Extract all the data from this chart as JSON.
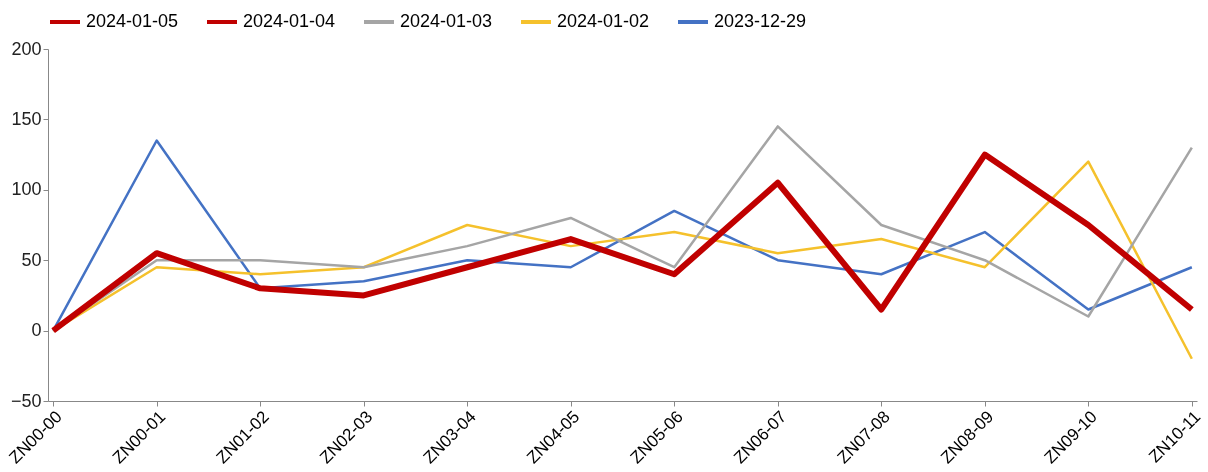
{
  "chart_data": {
    "type": "line",
    "categories": [
      "ZN00-00",
      "ZN00-01",
      "ZN01-02",
      "ZN02-03",
      "ZN03-04",
      "ZN04-05",
      "ZN05-06",
      "ZN06-07",
      "ZN07-08",
      "ZN08-09",
      "ZN09-10",
      "ZN10-11"
    ],
    "series": [
      {
        "name": "2024-01-05",
        "color": "#c00000",
        "values": [
          0,
          55,
          30,
          25,
          45,
          65,
          40,
          105,
          15,
          125,
          75,
          15
        ]
      },
      {
        "name": "2024-01-04",
        "color": "#c00000",
        "values": [
          null,
          null,
          null,
          null,
          null,
          null,
          null,
          null,
          null,
          null,
          null,
          null
        ]
      },
      {
        "name": "2024-01-03",
        "color": "#a5a5a5",
        "values": [
          0,
          50,
          50,
          45,
          60,
          80,
          45,
          145,
          75,
          50,
          10,
          130
        ]
      },
      {
        "name": "2024-01-02",
        "color": "#f5c12c",
        "values": [
          0,
          45,
          40,
          45,
          75,
          60,
          70,
          55,
          65,
          45,
          120,
          -20
        ]
      },
      {
        "name": "2023-12-29",
        "color": "#4472c4",
        "values": [
          0,
          135,
          30,
          35,
          50,
          45,
          85,
          50,
          40,
          70,
          15,
          45
        ]
      }
    ],
    "ylim": [
      -50,
      200
    ],
    "yticks": [
      -50,
      0,
      50,
      100,
      150,
      200
    ],
    "grid": false,
    "legend": "top",
    "marker": "none",
    "line_style": "solid"
  }
}
